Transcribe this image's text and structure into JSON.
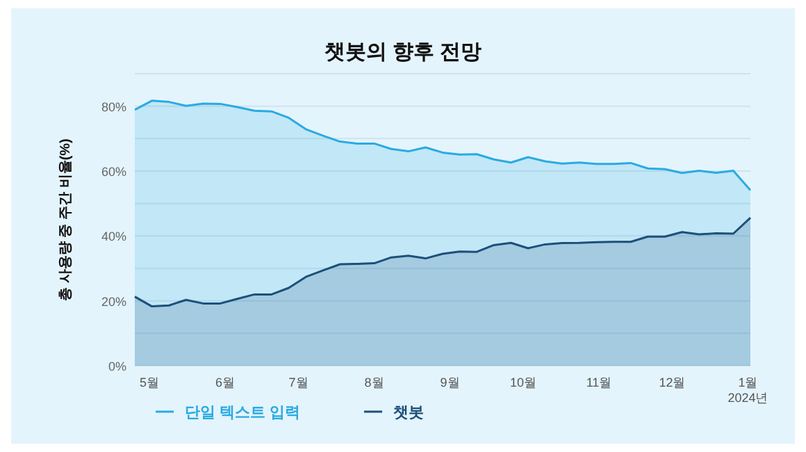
{
  "chart_data": {
    "type": "area",
    "title": "챗봇의 향후 전망",
    "ylabel": "총 사용량 중 주간 비율(%)",
    "x": [
      "2023-04-25",
      "2023-05-02",
      "2023-05-09",
      "2023-05-16",
      "2023-05-23",
      "2023-05-30",
      "2023-06-06",
      "2023-06-13",
      "2023-06-20",
      "2023-06-27",
      "2023-07-04",
      "2023-07-11",
      "2023-07-18",
      "2023-07-25",
      "2023-08-01",
      "2023-08-08",
      "2023-08-15",
      "2023-08-22",
      "2023-08-29",
      "2023-09-05",
      "2023-09-12",
      "2023-09-19",
      "2023-09-26",
      "2023-10-03",
      "2023-10-10",
      "2023-10-17",
      "2023-10-24",
      "2023-10-31",
      "2023-11-07",
      "2023-11-14",
      "2023-11-21",
      "2023-11-28",
      "2023-12-05",
      "2023-12-12",
      "2023-12-19",
      "2023-12-26",
      "2024-01-02"
    ],
    "series": [
      {
        "name": "단일 텍스트 입력",
        "color": "#29abe2",
        "values": [
          78.9,
          81.7,
          81.3,
          80.1,
          80.8,
          80.7,
          79.7,
          78.6,
          78.4,
          76.4,
          72.9,
          70.9,
          69.1,
          68.5,
          68.5,
          66.8,
          66.1,
          67.3,
          65.7,
          65.1,
          65.2,
          63.6,
          62.6,
          64.3,
          63.0,
          62.3,
          62.6,
          62.2,
          62.2,
          62.5,
          60.8,
          60.6,
          59.4,
          60.1,
          59.5,
          60.1,
          54.1
        ]
      },
      {
        "name": "챗봇",
        "color": "#1d4f7a",
        "values": [
          21.3,
          18.3,
          18.6,
          20.3,
          19.2,
          19.2,
          20.6,
          22.0,
          22.0,
          24.0,
          27.4,
          29.4,
          31.3,
          31.4,
          31.6,
          33.4,
          33.9,
          33.1,
          34.5,
          35.2,
          35.1,
          37.2,
          37.9,
          36.2,
          37.4,
          37.8,
          37.9,
          38.1,
          38.2,
          38.2,
          39.8,
          39.8,
          41.2,
          40.5,
          40.8,
          40.7,
          45.6
        ]
      }
    ],
    "xlim": [
      "2023-04-25",
      "2024-01-02"
    ],
    "xticks": [
      {
        "value": "2023-05-01",
        "label": "5월"
      },
      {
        "value": "2023-06-01",
        "label": "6월"
      },
      {
        "value": "2023-07-01",
        "label": "7월"
      },
      {
        "value": "2023-08-01",
        "label": "8월"
      },
      {
        "value": "2023-09-01",
        "label": "9월"
      },
      {
        "value": "2023-10-01",
        "label": "10월"
      },
      {
        "value": "2023-11-01",
        "label": "11월"
      },
      {
        "value": "2023-12-01",
        "label": "12월"
      },
      {
        "value": "2024-01-01",
        "label": "1월\n2024년"
      }
    ],
    "ylim": [
      0,
      90
    ],
    "yticks": [
      {
        "value": 0,
        "label": "0%"
      },
      {
        "value": 10,
        "label": null
      },
      {
        "value": 20,
        "label": "20%"
      },
      {
        "value": 30,
        "label": null
      },
      {
        "value": 40,
        "label": "40%"
      },
      {
        "value": 50,
        "label": null
      },
      {
        "value": 60,
        "label": "60%"
      },
      {
        "value": 70,
        "label": null
      },
      {
        "value": 80,
        "label": "80%"
      },
      {
        "value": 90,
        "label": null
      }
    ],
    "grid": "y",
    "legend": "bottom"
  }
}
